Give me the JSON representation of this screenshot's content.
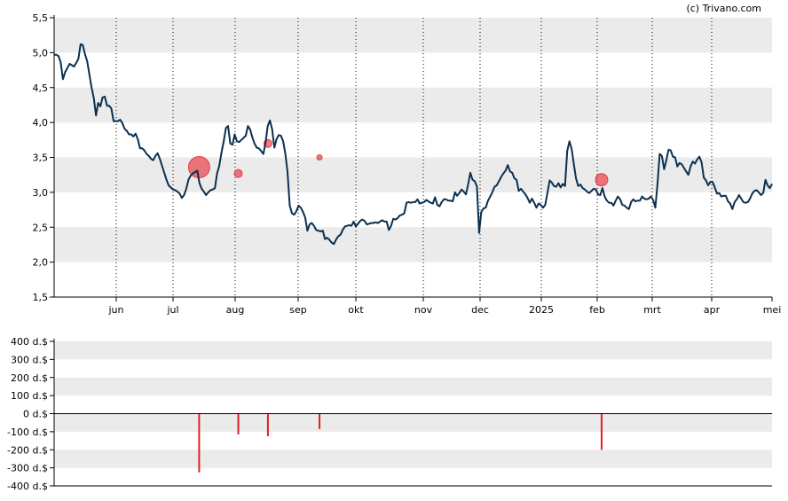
{
  "credit": "(c) Trivano.com",
  "colors": {
    "band": "#ebebeb",
    "price_line": "#0b3050",
    "bubble": "#e8333a",
    "volume_bar": "#e01f28",
    "axis": "#000000"
  },
  "chart_data": [
    {
      "type": "line",
      "y_ticks": [
        "1,5",
        "2,0",
        "2,5",
        "3,0",
        "3,5",
        "4,0",
        "4,5",
        "5,0",
        "5,5"
      ],
      "x_ticks": [
        "jun",
        "jul",
        "aug",
        "sep",
        "okt",
        "nov",
        "dec",
        "2025",
        "feb",
        "mrt",
        "apr",
        "mei"
      ],
      "ylim": [
        1.5,
        5.5
      ],
      "grid": "horizontal bands, vertical dotted month lines",
      "series": [
        {
          "values": [
            4.97,
            4.97,
            4.95,
            4.86,
            4.62,
            4.72,
            4.78,
            4.84,
            4.82,
            4.8,
            4.85,
            4.91,
            5.12,
            5.11,
            4.98,
            4.88,
            4.69,
            4.5,
            4.35,
            4.1,
            4.28,
            4.23,
            4.36,
            4.37,
            4.24,
            4.24,
            4.2,
            4.02,
            4.02,
            4.02,
            4.04,
            3.99,
            3.91,
            3.88,
            3.83,
            3.83,
            3.8,
            3.84,
            3.76,
            3.63,
            3.63,
            3.6,
            3.55,
            3.52,
            3.48,
            3.46,
            3.52,
            3.56,
            3.48,
            3.38,
            3.28,
            3.18,
            3.1,
            3.07,
            3.04,
            3.03,
            3.01,
            2.98,
            2.92,
            2.96,
            3.05,
            3.18,
            3.24,
            3.27,
            3.29,
            3.31,
            3.13,
            3.05,
            3.01,
            2.96,
            3.0,
            3.03,
            3.04,
            3.06,
            3.27,
            3.38,
            3.57,
            3.73,
            3.92,
            3.95,
            3.7,
            3.68,
            3.83,
            3.73,
            3.72,
            3.75,
            3.78,
            3.81,
            3.95,
            3.9,
            3.79,
            3.7,
            3.64,
            3.63,
            3.59,
            3.55,
            3.71,
            3.95,
            4.03,
            3.9,
            3.64,
            3.76,
            3.82,
            3.81,
            3.73,
            3.55,
            3.29,
            2.81,
            2.7,
            2.68,
            2.73,
            2.81,
            2.78,
            2.72,
            2.64,
            2.45,
            2.54,
            2.56,
            2.52,
            2.46,
            2.45,
            2.44,
            2.45,
            2.33,
            2.35,
            2.32,
            2.28,
            2.26,
            2.32,
            2.37,
            2.39,
            2.46,
            2.51,
            2.52,
            2.53,
            2.52,
            2.58,
            2.51,
            2.55,
            2.59,
            2.61,
            2.59,
            2.54,
            2.55,
            2.56,
            2.56,
            2.57,
            2.56,
            2.58,
            2.6,
            2.58,
            2.58,
            2.46,
            2.52,
            2.62,
            2.61,
            2.63,
            2.67,
            2.68,
            2.7,
            2.85,
            2.86,
            2.85,
            2.86,
            2.86,
            2.9,
            2.84,
            2.85,
            2.86,
            2.89,
            2.87,
            2.85,
            2.84,
            2.93,
            2.82,
            2.8,
            2.86,
            2.9,
            2.9,
            2.88,
            2.88,
            2.87,
            3.0,
            2.95,
            2.99,
            3.04,
            3.01,
            2.97,
            3.11,
            3.28,
            3.18,
            3.16,
            3.08,
            2.42,
            2.72,
            2.77,
            2.78,
            2.88,
            2.94,
            3.0,
            3.08,
            3.1,
            3.16,
            3.22,
            3.27,
            3.31,
            3.39,
            3.3,
            3.28,
            3.2,
            3.18,
            3.02,
            3.05,
            3.01,
            2.97,
            2.92,
            2.85,
            2.91,
            2.85,
            2.78,
            2.84,
            2.82,
            2.78,
            2.82,
            2.99,
            3.17,
            3.14,
            3.09,
            3.08,
            3.13,
            3.07,
            3.12,
            3.09,
            3.59,
            3.73,
            3.62,
            3.4,
            3.2,
            3.09,
            3.11,
            3.06,
            3.04,
            3.01,
            2.99,
            3.02,
            3.05,
            3.04,
            2.97,
            2.96,
            3.06,
            2.94,
            2.88,
            2.85,
            2.85,
            2.81,
            2.88,
            2.94,
            2.9,
            2.82,
            2.81,
            2.78,
            2.76,
            2.86,
            2.9,
            2.87,
            2.88,
            2.88,
            2.94,
            2.91,
            2.9,
            2.91,
            2.94,
            2.89,
            2.78,
            3.13,
            3.55,
            3.52,
            3.33,
            3.46,
            3.61,
            3.6,
            3.51,
            3.5,
            3.37,
            3.42,
            3.4,
            3.35,
            3.3,
            3.25,
            3.37,
            3.44,
            3.41,
            3.47,
            3.51,
            3.43,
            3.21,
            3.17,
            3.1,
            3.15,
            3.15,
            3.07,
            2.98,
            2.99,
            2.94,
            2.95,
            2.95,
            2.87,
            2.84,
            2.76,
            2.86,
            2.9,
            2.96,
            2.91,
            2.86,
            2.85,
            2.86,
            2.91,
            2.98,
            3.02,
            3.03,
            3.0,
            2.96,
            2.99,
            3.18,
            3.1,
            3.06,
            3.12
          ]
        }
      ],
      "events": [
        {
          "month_pos": 1.42,
          "price": 3.36,
          "size": "large"
        },
        {
          "month_pos": 2.05,
          "price": 3.27,
          "size": "small"
        },
        {
          "month_pos": 2.52,
          "price": 3.7,
          "size": "small"
        },
        {
          "month_pos": 3.37,
          "price": 3.5,
          "size": "tiny"
        },
        {
          "month_pos": 8.08,
          "price": 3.18,
          "size": "medium"
        }
      ]
    },
    {
      "type": "bar",
      "y_ticks": [
        "400 d.$",
        "300 d.$",
        "200 d.$",
        "100 d.$",
        "0 d.$",
        "-100 d.$",
        "-200 d.$",
        "-300 d.$",
        "-400 d.$"
      ],
      "ylim": [
        -400,
        400
      ],
      "grid": "horizontal bands",
      "bars": [
        {
          "month_pos": 1.42,
          "value": -325
        },
        {
          "month_pos": 2.05,
          "value": -115
        },
        {
          "month_pos": 2.52,
          "value": -125
        },
        {
          "month_pos": 3.37,
          "value": -85
        },
        {
          "month_pos": 8.08,
          "value": -200
        }
      ]
    }
  ]
}
